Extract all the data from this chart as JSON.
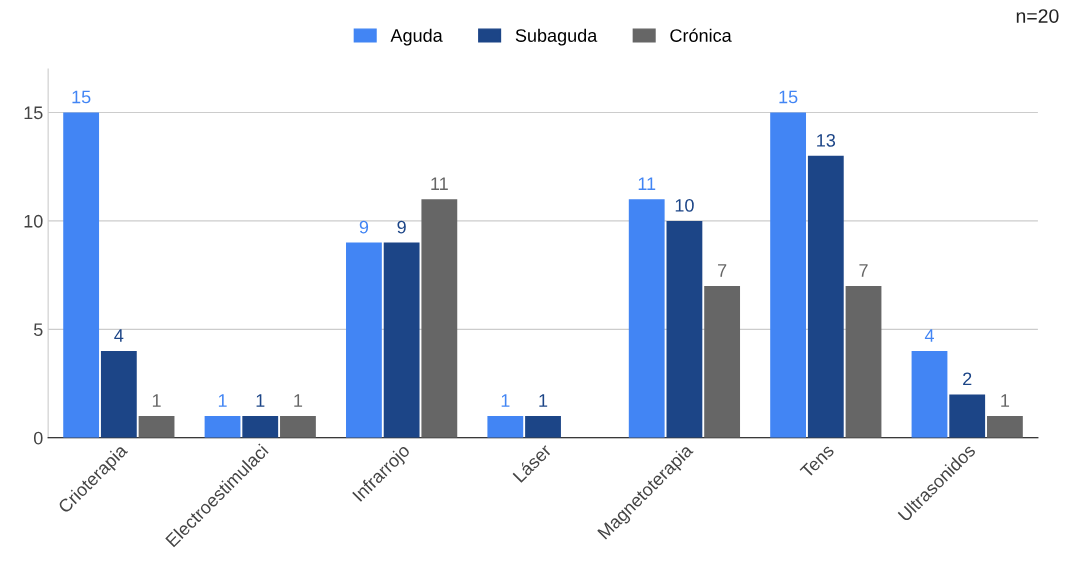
{
  "chart_data": {
    "type": "bar",
    "categories": [
      "Crioterapia",
      "Electroestimulaci",
      "Infrarrojo",
      "Láser",
      "Magnetoterapia",
      "Tens",
      "Ultrasonidos"
    ],
    "series": [
      {
        "name": "Aguda",
        "color": "#4285f4",
        "values": [
          15,
          1,
          9,
          1,
          11,
          15,
          4
        ]
      },
      {
        "name": "Subaguda",
        "color": "#1c4587",
        "values": [
          4,
          1,
          9,
          1,
          10,
          13,
          2
        ]
      },
      {
        "name": "Crónica",
        "color": "#666666",
        "values": [
          1,
          1,
          11,
          null,
          7,
          7,
          1
        ]
      }
    ],
    "ylim": [
      0,
      17
    ],
    "yticks": [
      0,
      5,
      10,
      15
    ],
    "grid": "y",
    "legend": "top",
    "data_labels": true,
    "annotations": [
      "n=20"
    ]
  }
}
